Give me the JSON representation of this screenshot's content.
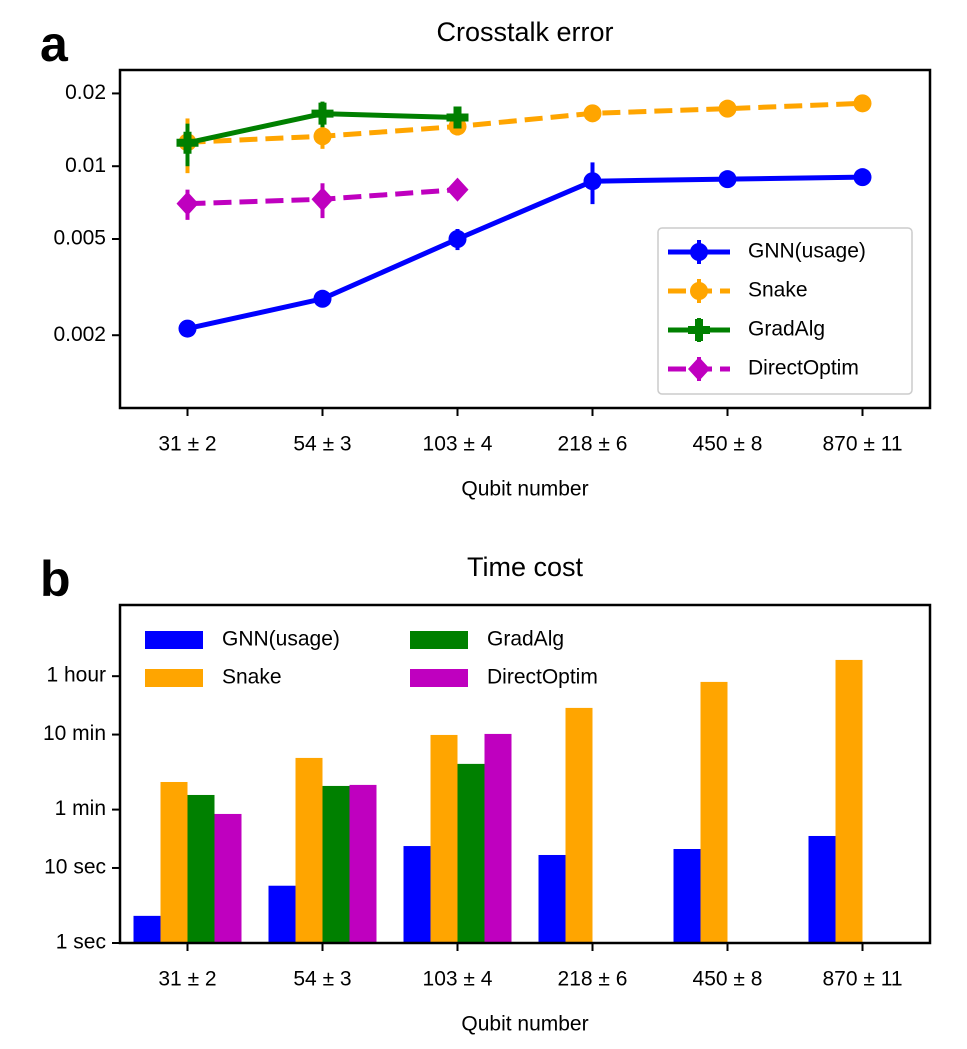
{
  "chart_data": [
    {
      "type": "line",
      "panel_label": "a",
      "title": "Crosstalk error",
      "x_label": "Qubit number",
      "categories": [
        "31 ± 2",
        "54 ± 3",
        "103 ± 4",
        "218 ± 6",
        "450 ± 8",
        "870 ± 11"
      ],
      "log_y": true,
      "ylim": [
        0.001,
        0.025
      ],
      "yticks": [
        0.002,
        0.005,
        0.01,
        0.02
      ],
      "legend": "lower right",
      "series": [
        {
          "name": "GNN(usage)",
          "color": "#0000ff",
          "dashed": false,
          "marker": "circle",
          "values": [
            0.00213,
            0.00283,
            0.005,
            0.00867,
            0.00884,
            0.00901
          ],
          "errors": [
            0.0001,
            0.0002,
            0.0005,
            0.0017,
            0.0006,
            0.0004
          ]
        },
        {
          "name": "Snake",
          "color": "#ffa500",
          "dashed": true,
          "marker": "circle",
          "values": [
            0.01256,
            0.0133,
            0.0146,
            0.01655,
            0.0173,
            0.0182
          ],
          "errors": [
            0.0032,
            0.0015,
            0.0012,
            0.0005,
            0.0005,
            0.0005
          ]
        },
        {
          "name": "GradAlg",
          "color": "#008000",
          "dashed": false,
          "marker": "plus",
          "values": [
            0.0125,
            0.0165,
            0.0159,
            null,
            null,
            null
          ],
          "errors": [
            0.0025,
            0.002,
            0.0012,
            null,
            null,
            null
          ]
        },
        {
          "name": "DirectOptim",
          "color": "#bf00bf",
          "dashed": true,
          "marker": "diamond",
          "values": [
            0.007,
            0.0073,
            0.008,
            null,
            null,
            null
          ],
          "errors": [
            0.001,
            0.0012,
            0.0003,
            null,
            null,
            null
          ]
        }
      ]
    },
    {
      "type": "bar",
      "panel_label": "b",
      "title": "Time cost",
      "x_label": "Qubit number",
      "categories": [
        "31 ± 2",
        "54 ± 3",
        "103 ± 4",
        "218 ± 6",
        "450 ± 8",
        "870 ± 11"
      ],
      "log_y": true,
      "ylim": [
        1,
        32000
      ],
      "yticks": [
        {
          "value": 1,
          "label": "1 sec"
        },
        {
          "value": 10,
          "label": "10 sec"
        },
        {
          "value": 60,
          "label": "1 min"
        },
        {
          "value": 600,
          "label": "10 min"
        },
        {
          "value": 3600,
          "label": "1 hour"
        }
      ],
      "legend": "upper left",
      "series": [
        {
          "name": "GNN(usage)",
          "color": "#0000ff",
          "values": [
            2.3,
            5.8,
            19.6,
            14.9,
            17.9,
            26.7
          ]
        },
        {
          "name": "Snake",
          "color": "#ffa500",
          "values": [
            140,
            293,
            593,
            1360,
            3020,
            5930
          ]
        },
        {
          "name": "GradAlg",
          "color": "#008000",
          "values": [
            94,
            124,
            244,
            null,
            null,
            null
          ]
        },
        {
          "name": "DirectOptim",
          "color": "#bf00bf",
          "values": [
            52.5,
            128,
            612,
            null,
            null,
            null
          ]
        }
      ]
    }
  ]
}
